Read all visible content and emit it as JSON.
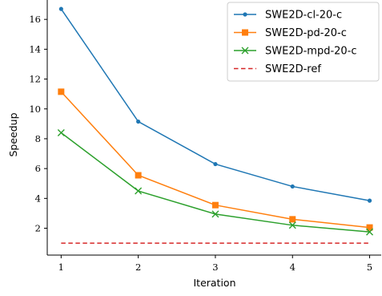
{
  "chart_data": {
    "type": "line",
    "title": "",
    "xlabel": "Iteration",
    "ylabel": "Speedup",
    "x": [
      1,
      2,
      3,
      4,
      5
    ],
    "xticks": [
      "1",
      "2",
      "3",
      "4",
      "5"
    ],
    "yticks": [
      "2",
      "4",
      "6",
      "8",
      "10",
      "12",
      "14",
      "16"
    ],
    "xlim": [
      0.82,
      5.15
    ],
    "ylim": [
      0.2,
      17.3
    ],
    "grid": false,
    "legend_position": "top-right",
    "series": [
      {
        "name": "SWE2D-cl-20-c",
        "values": [
          16.7,
          9.15,
          6.3,
          4.8,
          3.85
        ],
        "color": "#1f77b4",
        "marker": "dot",
        "linestyle": "solid"
      },
      {
        "name": "SWE2D-pd-20-c",
        "values": [
          11.15,
          5.55,
          3.55,
          2.6,
          2.05
        ],
        "color": "#ff7f0e",
        "marker": "square",
        "linestyle": "solid"
      },
      {
        "name": "SWE2D-mpd-20-c",
        "values": [
          8.4,
          4.5,
          2.95,
          2.2,
          1.75
        ],
        "color": "#2ca02c",
        "marker": "x",
        "linestyle": "solid"
      },
      {
        "name": "SWE2D-ref",
        "values": [
          1.0,
          1.0,
          1.0,
          1.0,
          1.0
        ],
        "color": "#d62728",
        "marker": "none",
        "linestyle": "dashed"
      }
    ]
  }
}
